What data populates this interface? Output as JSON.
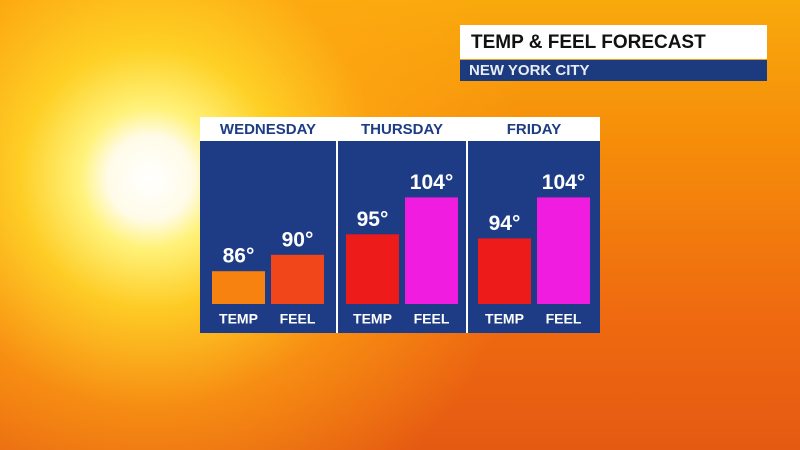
{
  "chart_data": {
    "type": "bar",
    "title": "TEMP & FEEL FORECAST",
    "subtitle": "NEW YORK CITY",
    "categories": [
      "WEDNESDAY",
      "THURSDAY",
      "FRIDAY"
    ],
    "series": [
      {
        "name": "TEMP",
        "colors": [
          "#f7820f",
          "#ee1b1b",
          "#ee1b1b"
        ],
        "values": [
          86,
          95,
          94
        ],
        "value_labels": [
          "86°",
          "95°",
          "94°"
        ]
      },
      {
        "name": "FEEL",
        "colors": [
          "#f0461a",
          "#f01cdf",
          "#f01cdf"
        ],
        "values": [
          90,
          104,
          104
        ],
        "value_labels": [
          "90°",
          "104°",
          "104°"
        ]
      }
    ],
    "ylim": [
      78,
      110
    ]
  }
}
